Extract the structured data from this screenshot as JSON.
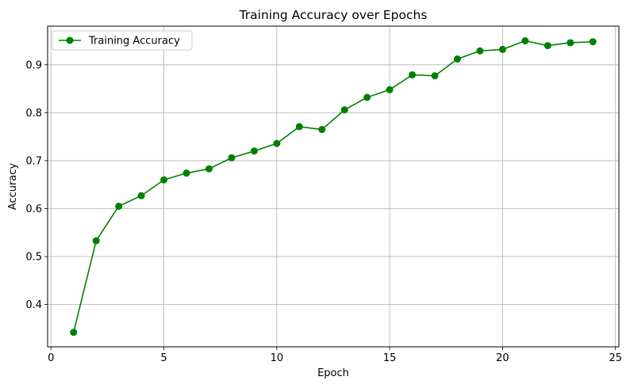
{
  "chart_data": {
    "type": "line",
    "title": "Training Accuracy over Epochs",
    "xlabel": "Epoch",
    "ylabel": "Accuracy",
    "xlim": [
      -0.15,
      25.15
    ],
    "ylim": [
      0.3118,
      0.9806
    ],
    "x_ticks": [
      0,
      5,
      10,
      15,
      20,
      25
    ],
    "x_tick_labels": [
      "0",
      "5",
      "10",
      "15",
      "20",
      "25"
    ],
    "y_ticks": [
      0.4,
      0.5,
      0.6,
      0.7,
      0.8,
      0.9
    ],
    "y_tick_labels": [
      "0.4",
      "0.5",
      "0.6",
      "0.7",
      "0.8",
      "0.9"
    ],
    "grid": true,
    "legend_position": "upper-left",
    "series": [
      {
        "name": "Training Accuracy",
        "color": "#008000",
        "marker": "circle",
        "x": [
          1,
          2,
          3,
          4,
          5,
          6,
          7,
          8,
          9,
          10,
          11,
          12,
          13,
          14,
          15,
          16,
          17,
          18,
          19,
          20,
          21,
          22,
          23,
          24
        ],
        "values": [
          0.342,
          0.533,
          0.605,
          0.627,
          0.66,
          0.674,
          0.683,
          0.706,
          0.72,
          0.736,
          0.771,
          0.765,
          0.806,
          0.832,
          0.848,
          0.879,
          0.877,
          0.912,
          0.929,
          0.932,
          0.95,
          0.94,
          0.946,
          0.948
        ]
      }
    ]
  }
}
